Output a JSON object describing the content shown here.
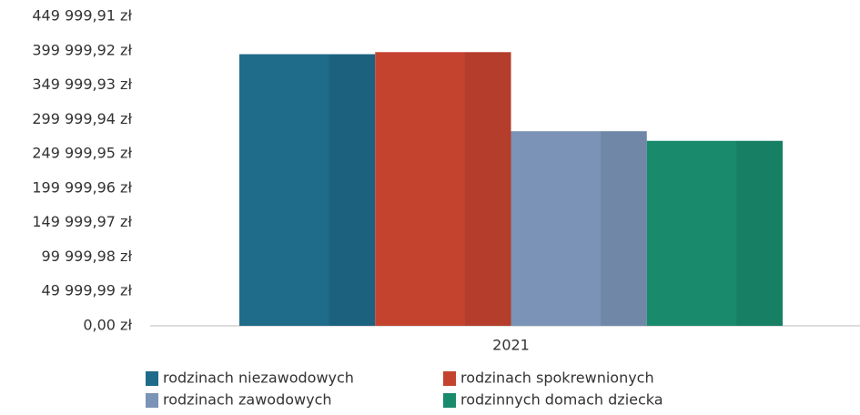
{
  "chart_data": {
    "type": "bar",
    "categories": [
      "2021"
    ],
    "series": [
      {
        "name": "rodzinach niezawodowych",
        "color": "#1f6b8a",
        "values": [
          395000
        ]
      },
      {
        "name": "rodzinach spokrewnionych",
        "color": "#c4432f",
        "values": [
          398000
        ]
      },
      {
        "name": "rodzinach zawodowych",
        "color": "#7b93b6",
        "values": [
          283000
        ]
      },
      {
        "name": "rodzinnych domach dziecka",
        "color": "#1a8a6c",
        "values": [
          269000
        ]
      }
    ],
    "ylim": [
      0,
      449999.91
    ],
    "yticks": [
      {
        "value": 0,
        "label": "0,00 zł"
      },
      {
        "value": 49999.99,
        "label": "49 999,99 zł"
      },
      {
        "value": 99999.98,
        "label": "99 999,98 zł"
      },
      {
        "value": 149999.97,
        "label": "149 999,97 zł"
      },
      {
        "value": 199999.96,
        "label": "199 999,96 zł"
      },
      {
        "value": 249999.95,
        "label": "249 999,95 zł"
      },
      {
        "value": 299999.94,
        "label": "299 999,94 zł"
      },
      {
        "value": 349999.93,
        "label": "349 999,93 zł"
      },
      {
        "value": 399999.92,
        "label": "399 999,92 zł"
      },
      {
        "value": 449999.91,
        "label": "449 999,91 zł"
      }
    ],
    "grid": false
  }
}
